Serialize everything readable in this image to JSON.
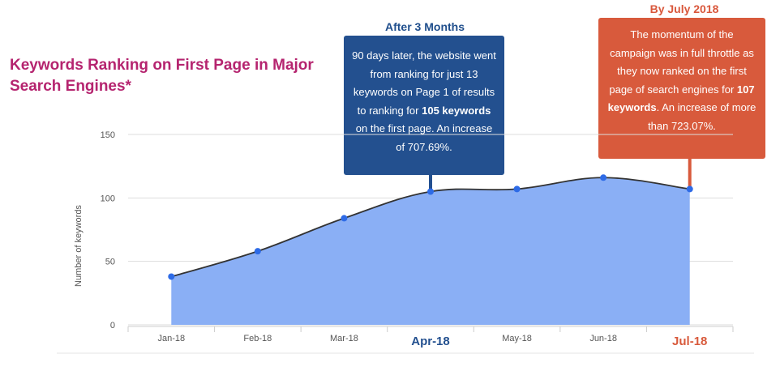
{
  "chart_data": {
    "type": "area",
    "title": "Keywords Ranking on First Page in Major Search Engines*",
    "ylabel": "Number of keywords",
    "xlabel": "",
    "categories": [
      "Jan-18",
      "Feb-18",
      "Mar-18",
      "Apr-18",
      "May-18",
      "Jun-18",
      "Jul-18"
    ],
    "highlighted_categories": {
      "Apr-18": "#23508f",
      "Jul-18": "#d85a3c"
    },
    "values": [
      38,
      58,
      84,
      105,
      107,
      116,
      107
    ],
    "ylim": [
      0,
      150
    ],
    "yticks": [
      0,
      50,
      100,
      150
    ],
    "grid": true,
    "colors": {
      "area": "#8aaff5",
      "line": "#333333",
      "points": "#2e6be6",
      "title": "#b5246f"
    },
    "annotations": [
      {
        "category": "Apr-18",
        "heading": "After 3 Months",
        "text_parts": [
          {
            "t": "90 days later, the website went from ranking for just 13 keywords on Page 1 of results to ranking for ",
            "bold": false
          },
          {
            "t": "105 keywords",
            "bold": true
          },
          {
            "t": " on the first page. An increase of 707.69%.",
            "bold": false
          }
        ],
        "color": "#23508f"
      },
      {
        "category": "Jul-18",
        "heading": "By July 2018",
        "text_parts": [
          {
            "t": "The momentum of the campaign was in full throttle as they now ranked on the first page of search engines for ",
            "bold": false
          },
          {
            "t": "107 keywords",
            "bold": true
          },
          {
            "t": ". An increase of more than 723.07%.",
            "bold": false
          }
        ],
        "color": "#d85a3c"
      }
    ]
  }
}
